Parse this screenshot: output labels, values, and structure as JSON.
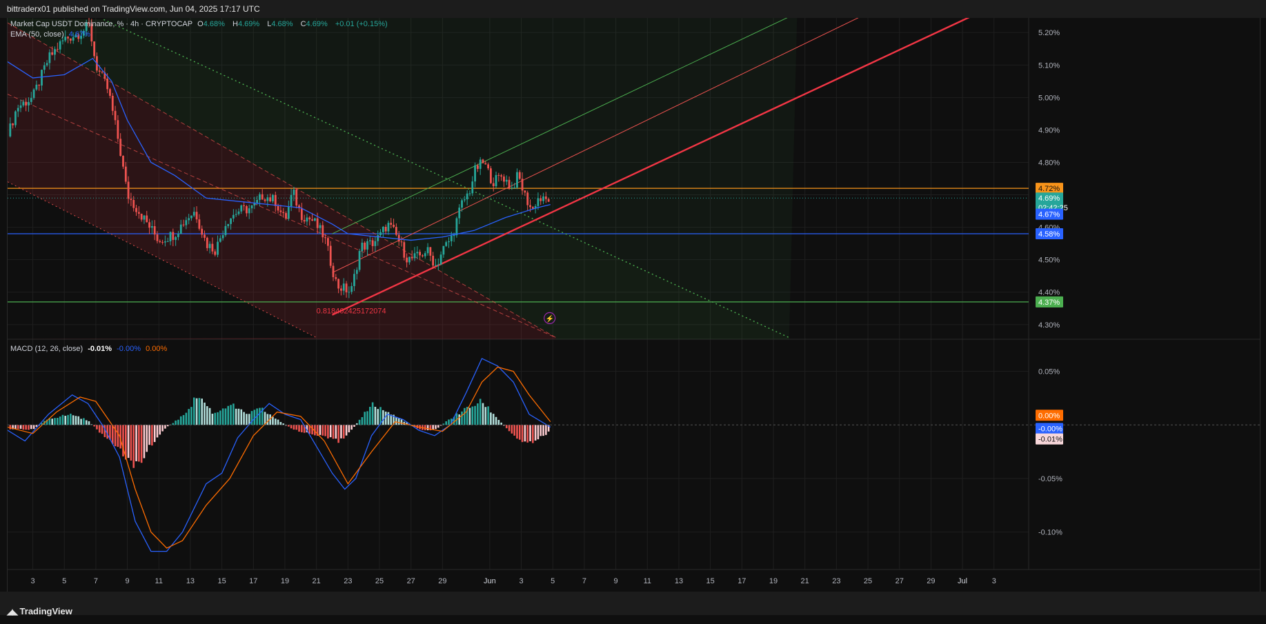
{
  "header": {
    "publisher_line": "bittraderx01 published on TradingView.com, Jun 04, 2025 17:17 UTC"
  },
  "legend": {
    "symbol": "Market Cap USDT Dominance, % · 4h · CRYPTOCAP",
    "o_label": "O",
    "o_value": "4.68%",
    "h_label": "H",
    "h_value": "4.69%",
    "l_label": "L",
    "l_value": "4.68%",
    "c_label": "C",
    "c_value": "4.69%",
    "change": "+0.01 (+0.15%)",
    "ema_label": "EMA (50, close)",
    "ema_value": "4.67%",
    "macd_label": "MACD (12, 26, close)",
    "macd_hist": "-0.01%",
    "macd_line": "-0.00%",
    "macd_signal": "0.00%"
  },
  "footer": {
    "brand": "TradingView"
  },
  "colors": {
    "up": "#26a69a",
    "down": "#ef5350",
    "ema": "#2962ff",
    "orange": "#f7931a",
    "blue_line": "#2962ff",
    "green_line": "#4caf50",
    "macd_line": "#2962ff",
    "signal_line": "#ff6d00",
    "channel_red": "#f23645"
  },
  "chart_data": [
    {
      "type": "candlestick",
      "title": "Market Cap USDT Dominance, % · 4h · CRYPTOCAP",
      "y_unit": "%",
      "ylim": [
        4.255,
        5.245
      ],
      "y_ticks": [
        "5.20%",
        "5.10%",
        "5.00%",
        "4.90%",
        "4.80%",
        "4.70%",
        "4.60%",
        "4.50%",
        "4.40%",
        "4.30%"
      ],
      "y_tick_values": [
        5.2,
        5.1,
        5.0,
        4.9,
        4.8,
        4.7,
        4.6,
        4.5,
        4.4,
        4.3
      ],
      "x_ticks": [
        "3",
        "5",
        "7",
        "9",
        "11",
        "13",
        "15",
        "17",
        "19",
        "21",
        "23",
        "25",
        "27",
        "29",
        "Jun",
        "3",
        "5",
        "7",
        "9",
        "11",
        "13",
        "15",
        "17",
        "19",
        "21",
        "23",
        "25",
        "27",
        "29",
        "Jul",
        "3"
      ],
      "x_tick_days": [
        3,
        5,
        7,
        9,
        11,
        13,
        15,
        17,
        19,
        21,
        23,
        25,
        27,
        29,
        32,
        34,
        36,
        38,
        40,
        42,
        44,
        46,
        48,
        50,
        52,
        54,
        56,
        58,
        60,
        62,
        64
      ],
      "x_range_days": [
        1.4,
        66.2
      ],
      "last_bar_day": 35.85,
      "price_path": [
        {
          "d": 1.4,
          "v": 4.88
        },
        {
          "d": 2.0,
          "v": 4.97
        },
        {
          "d": 3.0,
          "v": 5.0
        },
        {
          "d": 4.0,
          "v": 5.12
        },
        {
          "d": 5.0,
          "v": 5.18
        },
        {
          "d": 6.0,
          "v": 5.2
        },
        {
          "d": 6.6,
          "v": 5.22
        },
        {
          "d": 7.0,
          "v": 5.1
        },
        {
          "d": 7.8,
          "v": 5.02
        },
        {
          "d": 8.5,
          "v": 4.85
        },
        {
          "d": 9.0,
          "v": 4.7
        },
        {
          "d": 10.0,
          "v": 4.63
        },
        {
          "d": 11.0,
          "v": 4.56
        },
        {
          "d": 12.0,
          "v": 4.58
        },
        {
          "d": 12.8,
          "v": 4.63
        },
        {
          "d": 13.3,
          "v": 4.65
        },
        {
          "d": 14.0,
          "v": 4.55
        },
        {
          "d": 14.6,
          "v": 4.53
        },
        {
          "d": 15.3,
          "v": 4.62
        },
        {
          "d": 16.0,
          "v": 4.65
        },
        {
          "d": 17.0,
          "v": 4.66
        },
        {
          "d": 17.6,
          "v": 4.7
        },
        {
          "d": 18.4,
          "v": 4.68
        },
        {
          "d": 19.0,
          "v": 4.62
        },
        {
          "d": 19.5,
          "v": 4.71
        },
        {
          "d": 20.0,
          "v": 4.64
        },
        {
          "d": 20.8,
          "v": 4.62
        },
        {
          "d": 21.5,
          "v": 4.57
        },
        {
          "d": 22.3,
          "v": 4.42
        },
        {
          "d": 22.8,
          "v": 4.41
        },
        {
          "d": 23.2,
          "v": 4.4
        },
        {
          "d": 23.8,
          "v": 4.54
        },
        {
          "d": 24.5,
          "v": 4.55
        },
        {
          "d": 25.0,
          "v": 4.57
        },
        {
          "d": 25.5,
          "v": 4.61
        },
        {
          "d": 26.0,
          "v": 4.58
        },
        {
          "d": 26.8,
          "v": 4.5
        },
        {
          "d": 27.5,
          "v": 4.51
        },
        {
          "d": 28.0,
          "v": 4.53
        },
        {
          "d": 28.6,
          "v": 4.48
        },
        {
          "d": 29.0,
          "v": 4.53
        },
        {
          "d": 29.6,
          "v": 4.57
        },
        {
          "d": 30.2,
          "v": 4.67
        },
        {
          "d": 30.7,
          "v": 4.71
        },
        {
          "d": 31.1,
          "v": 4.78
        },
        {
          "d": 31.6,
          "v": 4.8
        },
        {
          "d": 32.2,
          "v": 4.74
        },
        {
          "d": 32.8,
          "v": 4.76
        },
        {
          "d": 33.4,
          "v": 4.72
        },
        {
          "d": 33.8,
          "v": 4.76
        },
        {
          "d": 34.2,
          "v": 4.7
        },
        {
          "d": 34.7,
          "v": 4.65
        },
        {
          "d": 35.0,
          "v": 4.69
        },
        {
          "d": 35.5,
          "v": 4.68
        },
        {
          "d": 35.85,
          "v": 4.69
        }
      ],
      "ema_path": [
        {
          "d": 1.4,
          "v": 5.11
        },
        {
          "d": 3.0,
          "v": 5.06
        },
        {
          "d": 5.0,
          "v": 5.07
        },
        {
          "d": 6.8,
          "v": 5.12
        },
        {
          "d": 8.0,
          "v": 5.05
        },
        {
          "d": 9.0,
          "v": 4.93
        },
        {
          "d": 10.5,
          "v": 4.8
        },
        {
          "d": 12.0,
          "v": 4.76
        },
        {
          "d": 14.0,
          "v": 4.69
        },
        {
          "d": 16.0,
          "v": 4.68
        },
        {
          "d": 18.0,
          "v": 4.67
        },
        {
          "d": 20.0,
          "v": 4.66
        },
        {
          "d": 22.0,
          "v": 4.61
        },
        {
          "d": 23.0,
          "v": 4.58
        },
        {
          "d": 25.0,
          "v": 4.57
        },
        {
          "d": 27.0,
          "v": 4.56
        },
        {
          "d": 29.0,
          "v": 4.57
        },
        {
          "d": 31.0,
          "v": 4.59
        },
        {
          "d": 33.0,
          "v": 4.63
        },
        {
          "d": 35.0,
          "v": 4.66
        },
        {
          "d": 35.85,
          "v": 4.67
        }
      ],
      "horizontal_levels": [
        {
          "value": 4.72,
          "label": "4.72%",
          "color": "#f7931a"
        },
        {
          "value": 4.58,
          "label": "4.58%",
          "color": "#2962ff"
        },
        {
          "value": 4.37,
          "label": "4.37%",
          "color": "#4caf50"
        }
      ],
      "price_labels": [
        {
          "value": 4.69,
          "label": "4.69%",
          "sub": "02:42:25",
          "color": "#26a69a"
        },
        {
          "value": 4.67,
          "label": "4.67%",
          "color": "#2962ff"
        },
        {
          "value": 4.6,
          "label": "4.60%",
          "color": ""
        }
      ],
      "annotation": "0.818462425172074",
      "drawings": {
        "down_channel_upper": [
          {
            "d": 1.4,
            "v": 5.23
          },
          {
            "d": 36.2,
            "v": 4.26
          }
        ],
        "down_channel_mid": [
          {
            "d": 1.4,
            "v": 5.01
          },
          {
            "d": 36.2,
            "v": 4.26
          }
        ],
        "down_channel_lower": [
          {
            "d": 1.4,
            "v": 4.74
          },
          {
            "d": 21.0,
            "v": 4.26
          }
        ],
        "dotted_green": [
          {
            "d": 7.5,
            "v": 5.24
          },
          {
            "d": 51.0,
            "v": 4.26
          }
        ],
        "up_channel_base": [
          {
            "d": 22.0,
            "v": 4.33
          },
          {
            "d": 63.0,
            "v": 5.26
          }
        ],
        "up_channel_mid": [
          {
            "d": 22.0,
            "v": 4.46
          },
          {
            "d": 56.0,
            "v": 5.26
          }
        ],
        "up_channel_top": [
          {
            "d": 22.0,
            "v": 4.58
          },
          {
            "d": 51.5,
            "v": 5.26
          }
        ]
      }
    },
    {
      "type": "line",
      "title": "MACD (12, 26, close)",
      "y_unit": "%",
      "ylim": [
        -0.135,
        0.08
      ],
      "y_ticks": [
        "0.05%",
        "-0.05%",
        "-0.10%"
      ],
      "y_tick_values": [
        0.05,
        -0.05,
        -0.1
      ],
      "series": [
        {
          "name": "MACD",
          "color": "#2962ff",
          "points": [
            {
              "d": 1.4,
              "v": -0.005
            },
            {
              "d": 2.5,
              "v": -0.015
            },
            {
              "d": 4.0,
              "v": 0.01
            },
            {
              "d": 5.5,
              "v": 0.028
            },
            {
              "d": 6.5,
              "v": 0.02
            },
            {
              "d": 7.5,
              "v": -0.002
            },
            {
              "d": 8.5,
              "v": -0.03
            },
            {
              "d": 9.5,
              "v": -0.09
            },
            {
              "d": 10.5,
              "v": -0.118
            },
            {
              "d": 11.5,
              "v": -0.118
            },
            {
              "d": 12.5,
              "v": -0.1
            },
            {
              "d": 14.0,
              "v": -0.055
            },
            {
              "d": 15.0,
              "v": -0.045
            },
            {
              "d": 16.0,
              "v": -0.012
            },
            {
              "d": 17.0,
              "v": 0.005
            },
            {
              "d": 18.0,
              "v": 0.02
            },
            {
              "d": 19.0,
              "v": 0.01
            },
            {
              "d": 20.0,
              "v": 0.005
            },
            {
              "d": 21.0,
              "v": -0.02
            },
            {
              "d": 22.0,
              "v": -0.045
            },
            {
              "d": 22.8,
              "v": -0.06
            },
            {
              "d": 23.5,
              "v": -0.05
            },
            {
              "d": 24.5,
              "v": -0.01
            },
            {
              "d": 25.5,
              "v": 0.01
            },
            {
              "d": 26.5,
              "v": 0.005
            },
            {
              "d": 27.5,
              "v": -0.005
            },
            {
              "d": 28.5,
              "v": -0.01
            },
            {
              "d": 29.5,
              "v": 0.0
            },
            {
              "d": 30.5,
              "v": 0.03
            },
            {
              "d": 31.5,
              "v": 0.062
            },
            {
              "d": 32.5,
              "v": 0.055
            },
            {
              "d": 33.5,
              "v": 0.04
            },
            {
              "d": 34.5,
              "v": 0.01
            },
            {
              "d": 35.85,
              "v": -0.002
            }
          ]
        },
        {
          "name": "Signal",
          "color": "#ff6d00",
          "points": [
            {
              "d": 1.4,
              "v": -0.002
            },
            {
              "d": 3.0,
              "v": -0.008
            },
            {
              "d": 4.5,
              "v": 0.012
            },
            {
              "d": 6.0,
              "v": 0.026
            },
            {
              "d": 7.0,
              "v": 0.022
            },
            {
              "d": 8.5,
              "v": -0.01
            },
            {
              "d": 9.5,
              "v": -0.06
            },
            {
              "d": 10.5,
              "v": -0.1
            },
            {
              "d": 11.5,
              "v": -0.115
            },
            {
              "d": 12.5,
              "v": -0.108
            },
            {
              "d": 14.0,
              "v": -0.075
            },
            {
              "d": 15.5,
              "v": -0.05
            },
            {
              "d": 17.0,
              "v": -0.01
            },
            {
              "d": 18.5,
              "v": 0.012
            },
            {
              "d": 20.0,
              "v": 0.008
            },
            {
              "d": 21.5,
              "v": -0.015
            },
            {
              "d": 23.0,
              "v": -0.055
            },
            {
              "d": 24.5,
              "v": -0.025
            },
            {
              "d": 26.0,
              "v": 0.003
            },
            {
              "d": 27.5,
              "v": -0.002
            },
            {
              "d": 29.0,
              "v": -0.006
            },
            {
              "d": 30.5,
              "v": 0.012
            },
            {
              "d": 31.5,
              "v": 0.04
            },
            {
              "d": 32.5,
              "v": 0.054
            },
            {
              "d": 33.5,
              "v": 0.05
            },
            {
              "d": 34.5,
              "v": 0.028
            },
            {
              "d": 35.85,
              "v": 0.003
            }
          ]
        }
      ],
      "histogram_envelope": [
        {
          "d": 1.4,
          "v": -0.004
        },
        {
          "d": 3.0,
          "v": -0.004
        },
        {
          "d": 4.0,
          "v": 0.006
        },
        {
          "d": 5.5,
          "v": 0.01
        },
        {
          "d": 6.5,
          "v": 0.004
        },
        {
          "d": 7.5,
          "v": -0.01
        },
        {
          "d": 8.5,
          "v": -0.025
        },
        {
          "d": 9.5,
          "v": -0.038
        },
        {
          "d": 10.5,
          "v": -0.02
        },
        {
          "d": 11.3,
          "v": -0.004
        },
        {
          "d": 12.5,
          "v": 0.008
        },
        {
          "d": 13.5,
          "v": 0.028
        },
        {
          "d": 14.5,
          "v": 0.01
        },
        {
          "d": 15.5,
          "v": 0.02
        },
        {
          "d": 16.5,
          "v": 0.01
        },
        {
          "d": 17.5,
          "v": 0.015
        },
        {
          "d": 18.5,
          "v": 0.005
        },
        {
          "d": 19.5,
          "v": -0.004
        },
        {
          "d": 20.5,
          "v": -0.008
        },
        {
          "d": 21.5,
          "v": -0.012
        },
        {
          "d": 22.5,
          "v": -0.015
        },
        {
          "d": 23.5,
          "v": 0.0
        },
        {
          "d": 24.5,
          "v": 0.02
        },
        {
          "d": 25.5,
          "v": 0.012
        },
        {
          "d": 26.5,
          "v": 0.004
        },
        {
          "d": 27.5,
          "v": -0.004
        },
        {
          "d": 28.5,
          "v": -0.005
        },
        {
          "d": 29.5,
          "v": 0.006
        },
        {
          "d": 30.5,
          "v": 0.015
        },
        {
          "d": 31.5,
          "v": 0.022
        },
        {
          "d": 32.5,
          "v": 0.006
        },
        {
          "d": 33.5,
          "v": -0.01
        },
        {
          "d": 34.5,
          "v": -0.017
        },
        {
          "d": 35.85,
          "v": -0.006
        }
      ],
      "price_labels": [
        {
          "value": 0.0,
          "label": "0.00%",
          "color": "#ff6d00"
        },
        {
          "value": -0.002,
          "label": "-0.00%",
          "color": "#2962ff"
        },
        {
          "value": -0.006,
          "label": "-0.01%",
          "color": "#f8d7da"
        }
      ]
    }
  ]
}
